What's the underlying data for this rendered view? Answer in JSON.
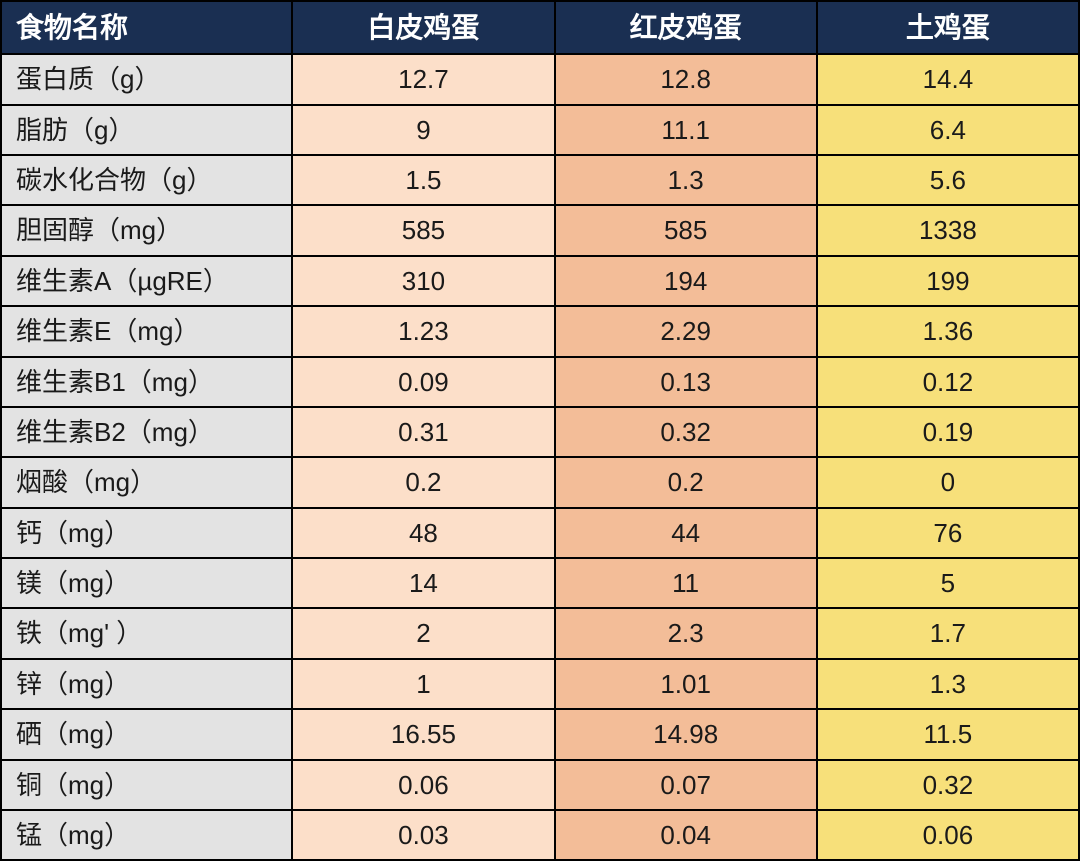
{
  "table": {
    "type": "table",
    "background_color": "#ffffff",
    "border_color": "#000000",
    "header_bg": "#1a2f52",
    "header_fg": "#ffffff",
    "header_fontsize": 28,
    "cell_fontsize": 26,
    "columns": [
      {
        "key": "name",
        "label": "食物名称",
        "bg": "#e3e3e3",
        "align": "left",
        "width_pct": 27
      },
      {
        "key": "white",
        "label": "白皮鸡蛋",
        "bg": "#fcdfc9",
        "align": "center",
        "width_pct": 24.3
      },
      {
        "key": "red",
        "label": "红皮鸡蛋",
        "bg": "#f3bd98",
        "align": "center",
        "width_pct": 24.3
      },
      {
        "key": "free",
        "label": "土鸡蛋",
        "bg": "#f7e07a",
        "align": "center",
        "width_pct": 24.3
      }
    ],
    "rows": [
      {
        "name": "蛋白质（g）",
        "white": "12.7",
        "red": "12.8",
        "free": "14.4"
      },
      {
        "name": "脂肪（g）",
        "white": "9",
        "red": "11.1",
        "free": "6.4"
      },
      {
        "name": "碳水化合物（g）",
        "white": "1.5",
        "red": "1.3",
        "free": "5.6"
      },
      {
        "name": "胆固醇（mg）",
        "white": "585",
        "red": "585",
        "free": "1338"
      },
      {
        "name": "维生素A（µgRE）",
        "white": "310",
        "red": "194",
        "free": "199"
      },
      {
        "name": "维生素E（mg）",
        "white": "1.23",
        "red": "2.29",
        "free": "1.36"
      },
      {
        "name": "维生素B1（mg）",
        "white": "0.09",
        "red": "0.13",
        "free": "0.12"
      },
      {
        "name": "维生素B2（mg）",
        "white": "0.31",
        "red": "0.32",
        "free": "0.19"
      },
      {
        "name": "烟酸（mg）",
        "white": "0.2",
        "red": "0.2",
        "free": "0"
      },
      {
        "name": "钙（mg）",
        "white": "48",
        "red": "44",
        "free": "76"
      },
      {
        "name": "镁（mg）",
        "white": "14",
        "red": "11",
        "free": "5"
      },
      {
        "name": "铁（mg' ）",
        "white": "2",
        "red": "2.3",
        "free": "1.7"
      },
      {
        "name": "锌（mg）",
        "white": "1",
        "red": "1.01",
        "free": "1.3"
      },
      {
        "name": "硒（mg）",
        "white": "16.55",
        "red": "14.98",
        "free": "11.5"
      },
      {
        "name": "铜（mg）",
        "white": "0.06",
        "red": "0.07",
        "free": "0.32"
      },
      {
        "name": "锰（mg）",
        "white": "0.03",
        "red": "0.04",
        "free": "0.06"
      }
    ]
  }
}
